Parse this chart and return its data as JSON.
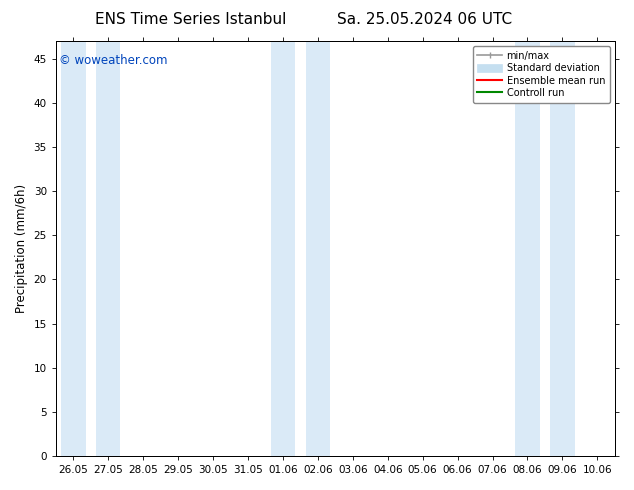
{
  "title_left": "ENS Time Series Istanbul",
  "title_right": "Sa. 25.05.2024 06 UTC",
  "ylabel": "Precipitation (mm/6h)",
  "watermark": "© woweather.com",
  "watermark_color": "#0044bb",
  "background_color": "#ffffff",
  "plot_bg_color": "#ffffff",
  "ylim": [
    0,
    47
  ],
  "yticks": [
    0,
    5,
    10,
    15,
    20,
    25,
    30,
    35,
    40,
    45
  ],
  "x_labels": [
    "26.05",
    "27.05",
    "28.05",
    "29.05",
    "30.05",
    "31.05",
    "01.06",
    "02.06",
    "03.06",
    "04.06",
    "05.06",
    "06.06",
    "07.06",
    "08.06",
    "09.06",
    "10.06"
  ],
  "n_cols": 16,
  "shaded_columns": [
    0,
    1,
    6,
    7,
    13,
    14
  ],
  "shaded_color": "#daeaf7",
  "minmax_color": "#999999",
  "stddev_color": "#c5dff0",
  "ensemble_mean_color": "#ff0000",
  "control_run_color": "#008800",
  "legend_labels": [
    "min/max",
    "Standard deviation",
    "Ensemble mean run",
    "Controll run"
  ],
  "title_fontsize": 11,
  "tick_fontsize": 7.5,
  "ylabel_fontsize": 8.5
}
